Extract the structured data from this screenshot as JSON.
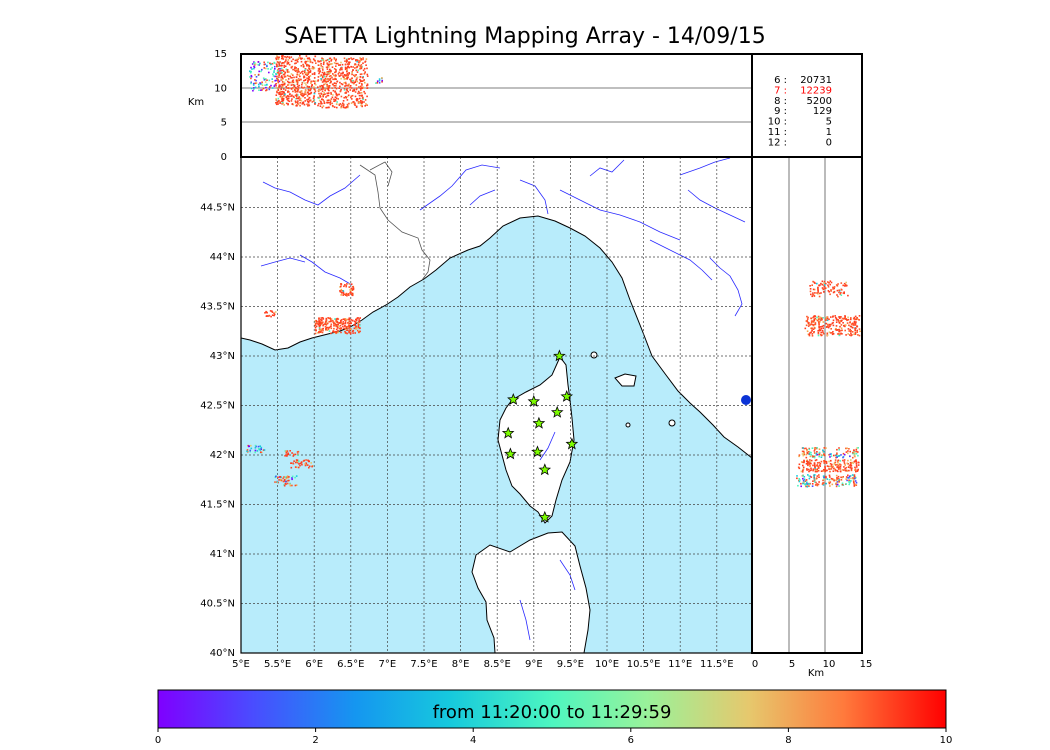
{
  "title": "SAETTA Lightning Mapping Array - 14/09/15",
  "colorbar_text": "from 11:20:00 to 11:29:59",
  "colorbar_ticks": [
    "0",
    "2",
    "4",
    "6",
    "8",
    "10"
  ],
  "colors": {
    "sea": "#b8ecfb",
    "coast": "#000000",
    "rivers": "#2a2aff",
    "borders": "#555555",
    "stations_fill": "#7cfc00",
    "grid": "#333333",
    "highlight": "#ff0000"
  },
  "station_legend": [
    {
      "n": "6 :",
      "count": "20731",
      "highlight": false
    },
    {
      "n": "7 :",
      "count": "12239",
      "highlight": true
    },
    {
      "n": "8 :",
      "count": "5200",
      "highlight": false
    },
    {
      "n": "9 :",
      "count": "129",
      "highlight": false
    },
    {
      "n": "10 :",
      "count": "5",
      "highlight": false
    },
    {
      "n": "11 :",
      "count": "1",
      "highlight": false
    },
    {
      "n": "12 :",
      "count": "0",
      "highlight": false
    }
  ],
  "map": {
    "lon_ticks": [
      "5°E",
      "5.5°E",
      "6°E",
      "6.5°E",
      "7°E",
      "7.5°E",
      "8°E",
      "8.5°E",
      "9°E",
      "9.5°E",
      "10°E",
      "10.5°E",
      "11°E",
      "11.5°E"
    ],
    "lat_ticks": [
      "40°N",
      "40.5°N",
      "41°N",
      "41.5°N",
      "42°N",
      "42.5°N",
      "43°N",
      "43.5°N",
      "44°N",
      "44.5°N"
    ],
    "lon_range": [
      5,
      12
    ],
    "lat_range": [
      40,
      45
    ]
  },
  "altitude_panel": {
    "ylabel": "Km",
    "y_ticks": [
      "0",
      "5",
      "10",
      "15"
    ],
    "range": [
      0,
      15
    ]
  },
  "side_panel": {
    "xlabel": "Km",
    "x_ticks": [
      "0",
      "5",
      "10",
      "15"
    ],
    "range": [
      0,
      15
    ]
  },
  "stations": [
    {
      "lon": 9.35,
      "lat": 43.0
    },
    {
      "lon": 8.72,
      "lat": 42.56
    },
    {
      "lon": 9.0,
      "lat": 42.54
    },
    {
      "lon": 9.45,
      "lat": 42.59
    },
    {
      "lon": 9.32,
      "lat": 42.43
    },
    {
      "lon": 9.07,
      "lat": 42.32
    },
    {
      "lon": 8.65,
      "lat": 42.22
    },
    {
      "lon": 9.52,
      "lat": 42.11
    },
    {
      "lon": 8.68,
      "lat": 42.01
    },
    {
      "lon": 9.05,
      "lat": 42.03
    },
    {
      "lon": 9.15,
      "lat": 41.85
    },
    {
      "lon": 9.15,
      "lat": 41.37
    }
  ]
}
